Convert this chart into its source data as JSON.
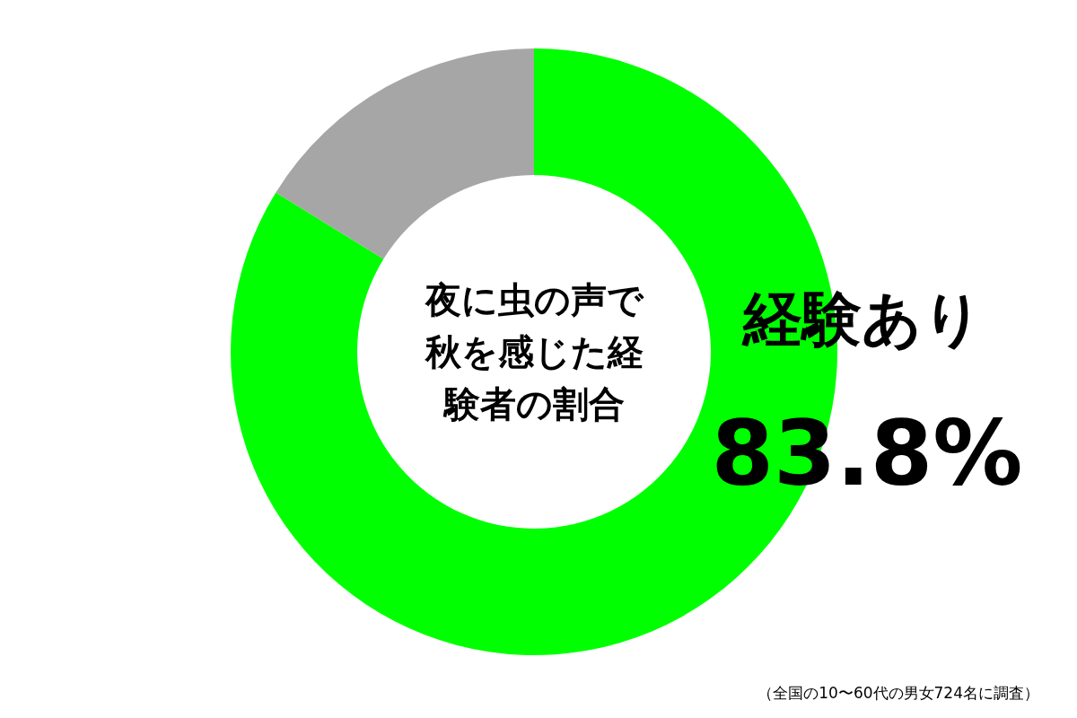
{
  "chart_data": {
    "type": "donut",
    "title": "夜に虫の声で秋を感じた経験者の割合",
    "categories": [
      "経験あり",
      null
    ],
    "values": [
      83.8,
      16.2
    ],
    "colors": [
      "#00ff00",
      "#a6a6a6"
    ],
    "value_labels": [
      "83.8%",
      null
    ],
    "annotations": [
      "（全国の10〜60代の男女724名に調査）"
    ]
  }
}
